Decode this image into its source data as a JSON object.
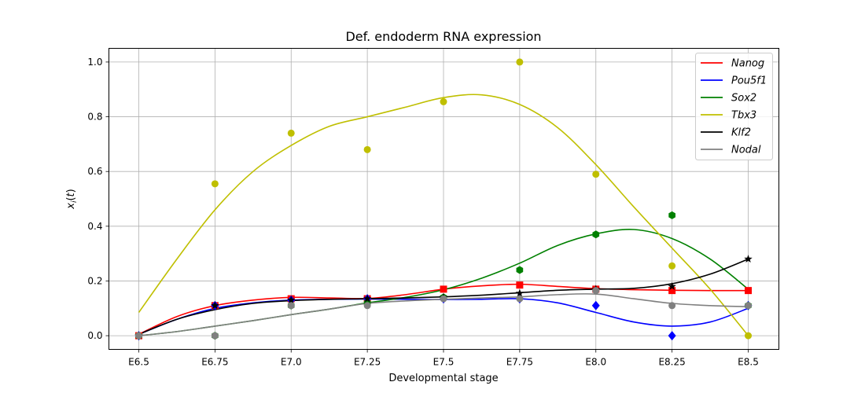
{
  "chart_data": {
    "type": "line",
    "title": "Def. endoderm RNA expression",
    "xlabel": "Developmental stage",
    "ylabel": "x_i(t)",
    "categories": [
      "E6.5",
      "E6.75",
      "E7.0",
      "E7.25",
      "E7.5",
      "E7.75",
      "E8.0",
      "E8.25",
      "E8.5"
    ],
    "ylim": [
      -0.05,
      1.05
    ],
    "yticks": [
      "0.0",
      "0.2",
      "0.4",
      "0.6",
      "0.8",
      "1.0"
    ],
    "grid": true,
    "legend_position": "top-right",
    "series": [
      {
        "name": "Nanog",
        "color": "#ff0000",
        "marker": "square",
        "values": [
          0.0,
          0.11,
          0.135,
          0.135,
          0.17,
          0.185,
          0.17,
          0.165,
          0.165
        ],
        "curve": [
          [
            0,
            0.005
          ],
          [
            0.5,
            0.07
          ],
          [
            1,
            0.11
          ],
          [
            1.5,
            0.13
          ],
          [
            2,
            0.14
          ],
          [
            2.5,
            0.138
          ],
          [
            3,
            0.136
          ],
          [
            3.5,
            0.15
          ],
          [
            4,
            0.17
          ],
          [
            4.5,
            0.182
          ],
          [
            5,
            0.188
          ],
          [
            5.5,
            0.18
          ],
          [
            6,
            0.172
          ],
          [
            6.5,
            0.168
          ],
          [
            7,
            0.166
          ],
          [
            7.5,
            0.165
          ],
          [
            8,
            0.165
          ]
        ]
      },
      {
        "name": "Pou5f1",
        "color": "#0000ff",
        "marker": "diamond",
        "values": [
          0.0,
          0.11,
          0.13,
          0.135,
          0.135,
          0.135,
          0.11,
          0.0,
          0.11
        ],
        "curve": [
          [
            0,
            0.005
          ],
          [
            0.5,
            0.06
          ],
          [
            1,
            0.1
          ],
          [
            1.5,
            0.12
          ],
          [
            2,
            0.13
          ],
          [
            2.5,
            0.133
          ],
          [
            3,
            0.134
          ],
          [
            3.5,
            0.133
          ],
          [
            4,
            0.132
          ],
          [
            4.5,
            0.133
          ],
          [
            5,
            0.135
          ],
          [
            5.5,
            0.12
          ],
          [
            6,
            0.085
          ],
          [
            6.5,
            0.05
          ],
          [
            7,
            0.035
          ],
          [
            7.5,
            0.05
          ],
          [
            8,
            0.1
          ]
        ]
      },
      {
        "name": "Sox2",
        "color": "#008000",
        "marker": "hexagon",
        "values": [
          0.0,
          0.0,
          0.11,
          0.12,
          0.14,
          0.24,
          0.37,
          0.44,
          0.11
        ],
        "curve": [
          [
            0,
            0.0
          ],
          [
            0.5,
            0.015
          ],
          [
            1,
            0.035
          ],
          [
            1.5,
            0.055
          ],
          [
            2,
            0.077
          ],
          [
            2.5,
            0.097
          ],
          [
            3,
            0.12
          ],
          [
            3.5,
            0.14
          ],
          [
            4,
            0.168
          ],
          [
            4.5,
            0.21
          ],
          [
            5,
            0.265
          ],
          [
            5.5,
            0.33
          ],
          [
            6,
            0.372
          ],
          [
            6.5,
            0.388
          ],
          [
            7,
            0.355
          ],
          [
            7.5,
            0.28
          ],
          [
            8,
            0.17
          ]
        ]
      },
      {
        "name": "Tbx3",
        "color": "#bfbf00",
        "marker": "circle",
        "values": [
          0.0,
          0.555,
          0.74,
          0.68,
          0.855,
          1.0,
          0.59,
          0.255,
          0.0
        ],
        "curve": [
          [
            0,
            0.085
          ],
          [
            0.5,
            0.28
          ],
          [
            1,
            0.46
          ],
          [
            1.5,
            0.6
          ],
          [
            2,
            0.695
          ],
          [
            2.5,
            0.765
          ],
          [
            3,
            0.8
          ],
          [
            3.5,
            0.835
          ],
          [
            4,
            0.87
          ],
          [
            4.5,
            0.88
          ],
          [
            5,
            0.845
          ],
          [
            5.5,
            0.76
          ],
          [
            6,
            0.625
          ],
          [
            6.5,
            0.47
          ],
          [
            7,
            0.32
          ],
          [
            7.5,
            0.17
          ],
          [
            8,
            0.0
          ]
        ]
      },
      {
        "name": "Klf2",
        "color": "#000000",
        "marker": "star",
        "values": [
          0.0,
          0.11,
          0.13,
          0.135,
          0.14,
          0.155,
          0.17,
          0.18,
          0.28
        ],
        "curve": [
          [
            0,
            0.005
          ],
          [
            0.5,
            0.06
          ],
          [
            1,
            0.095
          ],
          [
            1.5,
            0.118
          ],
          [
            2,
            0.128
          ],
          [
            2.5,
            0.133
          ],
          [
            3,
            0.135
          ],
          [
            3.5,
            0.138
          ],
          [
            4,
            0.142
          ],
          [
            4.5,
            0.148
          ],
          [
            5,
            0.157
          ],
          [
            5.5,
            0.166
          ],
          [
            6,
            0.17
          ],
          [
            6.5,
            0.173
          ],
          [
            7,
            0.19
          ],
          [
            7.5,
            0.225
          ],
          [
            8,
            0.28
          ]
        ]
      },
      {
        "name": "Nodal",
        "color": "#808080",
        "marker": "circle",
        "values": [
          0.0,
          0.0,
          0.11,
          0.11,
          0.135,
          0.135,
          0.165,
          0.11,
          0.11
        ],
        "curve": [
          [
            0,
            0.0
          ],
          [
            0.5,
            0.015
          ],
          [
            1,
            0.035
          ],
          [
            1.5,
            0.055
          ],
          [
            2,
            0.077
          ],
          [
            2.5,
            0.097
          ],
          [
            3,
            0.118
          ],
          [
            3.5,
            0.127
          ],
          [
            4,
            0.133
          ],
          [
            4.5,
            0.138
          ],
          [
            5,
            0.142
          ],
          [
            5.5,
            0.15
          ],
          [
            6,
            0.152
          ],
          [
            6.5,
            0.135
          ],
          [
            7,
            0.118
          ],
          [
            7.5,
            0.11
          ],
          [
            8,
            0.106
          ]
        ]
      }
    ]
  }
}
